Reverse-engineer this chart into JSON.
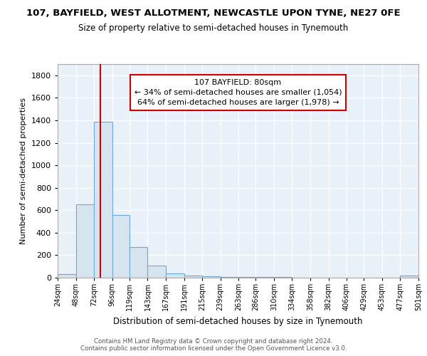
{
  "title": "107, BAYFIELD, WEST ALLOTMENT, NEWCASTLE UPON TYNE, NE27 0FE",
  "subtitle": "Size of property relative to semi-detached houses in Tynemouth",
  "xlabel": "Distribution of semi-detached houses by size in Tynemouth",
  "ylabel": "Number of semi-detached properties",
  "bin_edges": [
    24,
    48,
    72,
    96,
    119,
    143,
    167,
    191,
    215,
    239,
    263,
    286,
    310,
    334,
    358,
    382,
    406,
    429,
    453,
    477,
    501
  ],
  "bar_heights": [
    30,
    650,
    1390,
    560,
    270,
    105,
    35,
    20,
    15,
    8,
    5,
    5,
    4,
    0,
    0,
    0,
    0,
    0,
    0,
    20
  ],
  "bar_color": "#d6e4f0",
  "bar_edge_color": "#6aaad4",
  "property_size": 80,
  "red_line_color": "#cc0000",
  "annotation_text": "107 BAYFIELD: 80sqm\n← 34% of semi-detached houses are smaller (1,054)\n64% of semi-detached houses are larger (1,978) →",
  "annotation_box_edge": "#cc0000",
  "background_color": "#e8f0f8",
  "grid_color": "#ffffff",
  "footer_text": "Contains HM Land Registry data © Crown copyright and database right 2024.\nContains public sector information licensed under the Open Government Licence v3.0.",
  "ylim": [
    0,
    1900
  ],
  "tick_labels": [
    "24sqm",
    "48sqm",
    "72sqm",
    "96sqm",
    "119sqm",
    "143sqm",
    "167sqm",
    "191sqm",
    "215sqm",
    "239sqm",
    "263sqm",
    "286sqm",
    "310sqm",
    "334sqm",
    "358sqm",
    "382sqm",
    "406sqm",
    "429sqm",
    "453sqm",
    "477sqm",
    "501sqm"
  ]
}
